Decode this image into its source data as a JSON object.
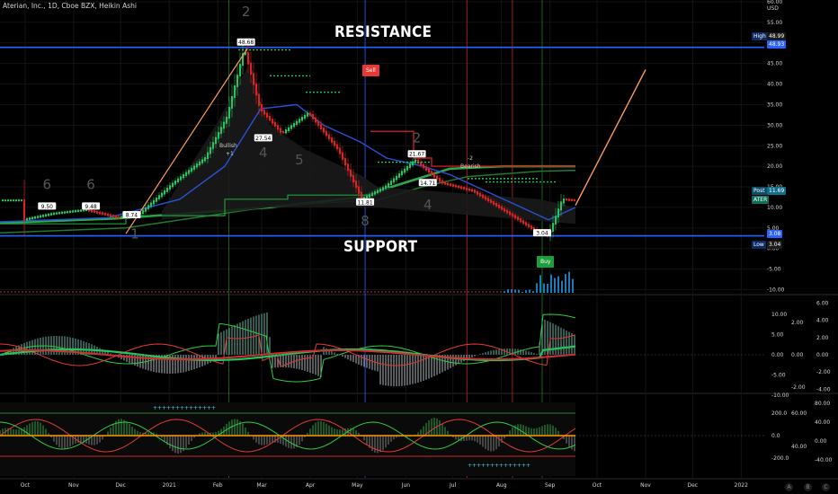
{
  "header": {
    "title": "Aterian, Inc., 1D, Cboe BZX, Heikin Ashi",
    "currency": "USD"
  },
  "annotations": {
    "resistance": "RESISTANCE",
    "support": "SUPPORT",
    "sell": "Sell",
    "buy": "Buy",
    "bullish": "Bullish",
    "bearish": "Bearish",
    "bullish_sub": "+1",
    "bearish_sub": "-2"
  },
  "price_labels": [
    "9.50",
    "9.48",
    "8.74",
    "48.68",
    "27.54",
    "11.81",
    "21.67",
    "14.71",
    "3.04"
  ],
  "wave_numbers": [
    "6",
    "6",
    "1",
    "2",
    "4",
    "5",
    "8",
    "2",
    "4"
  ],
  "right_tags": {
    "high_label": "High",
    "high_value": "48.99",
    "res_value": "48.93",
    "post_label": "Post",
    "post_value": "11.69",
    "ticker": "ATER",
    "sup_value": "3.08",
    "low_label": "Low",
    "low_value": "3.04"
  },
  "price_axis": [
    "60.00",
    "55.00",
    "50.00",
    "45.00",
    "40.00",
    "35.00",
    "30.00",
    "25.00",
    "20.00",
    "15.00",
    "10.00",
    "5.00",
    "0.00",
    "-5.00",
    "-10.00"
  ],
  "osc1_axis_left": [
    "10.00",
    "5.00",
    "0.00",
    "-5.00",
    "-10.00"
  ],
  "osc1_axis_right": [
    "6.00",
    "4.00",
    "2.00",
    "0.00",
    "-2.00",
    "-4.00"
  ],
  "osc1_axis_mid": [
    "2.00",
    "0.00",
    "-2.00"
  ],
  "osc2_axis_left": [
    "200.0",
    "0.0",
    "-200.0"
  ],
  "osc2_axis_mid": [
    "60.00",
    "40.00"
  ],
  "osc2_axis_right": [
    "80.00",
    "40.00",
    "0.00",
    "-40.00"
  ],
  "time_axis": [
    "Oct",
    "Nov",
    "Dec",
    "2021",
    "Feb",
    "Mar",
    "Apr",
    "May",
    "Jun",
    "Jul",
    "Aug",
    "Sep",
    "Oct",
    "Nov",
    "Dec",
    "2022"
  ],
  "corner_buttons": [
    "A",
    "B",
    "C"
  ],
  "colors": {
    "up": "#26a69a",
    "down": "#ef5350",
    "bull": "#22c55e",
    "bear": "#e02020",
    "level": "#2962ff",
    "projection": "#ff9a5a"
  },
  "chart_data": {
    "type": "line",
    "title": "Aterian, Inc., 1D, Cboe BZX, Heikin Ashi",
    "ylabel": "USD",
    "ylim": [
      -10,
      60
    ],
    "x": [
      "2020-10-01",
      "2020-10-20",
      "2020-11-10",
      "2020-12-01",
      "2020-12-15",
      "2021-01-05",
      "2021-01-25",
      "2021-02-08",
      "2021-02-19",
      "2021-03-01",
      "2021-03-15",
      "2021-04-01",
      "2021-04-20",
      "2021-05-05",
      "2021-05-20",
      "2021-06-08",
      "2021-06-25",
      "2021-07-15",
      "2021-08-05",
      "2021-08-25",
      "2021-09-01",
      "2021-09-10",
      "2021-09-17"
    ],
    "series": [
      {
        "values": [
          7.0,
          8.5,
          9.4,
          7.5,
          8.7,
          16.0,
          22.0,
          32.0,
          48.7,
          34.0,
          28.0,
          33.0,
          24.0,
          12.0,
          15.0,
          21.5,
          16.0,
          14.0,
          9.0,
          4.0,
          3.0,
          12.0,
          11.7
        ]
      }
    ],
    "levels": {
      "resistance": 48.93,
      "support": 3.08,
      "high": 48.99,
      "low": 3.04,
      "post": 11.69
    },
    "labeled_points": [
      9.5,
      9.48,
      8.74,
      48.68,
      27.54,
      11.81,
      21.67,
      14.71,
      3.04
    ],
    "signals": [
      {
        "label": "Sell",
        "date": "2021-06-08"
      },
      {
        "label": "Buy",
        "date": "2021-08-25"
      }
    ]
  }
}
